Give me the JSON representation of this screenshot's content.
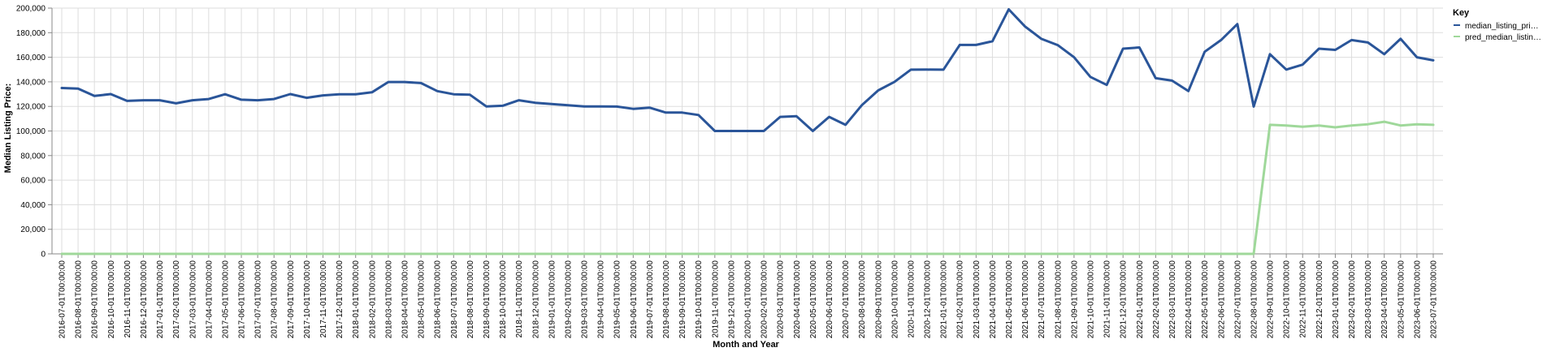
{
  "chart_data": {
    "type": "line",
    "xlabel": "Month and Year",
    "ylabel": "Median Listing Price:",
    "ylim": [
      0,
      200000
    ],
    "y_ticks": [
      "0",
      "20,000",
      "40,000",
      "60,000",
      "80,000",
      "100,000",
      "120,000",
      "140,000",
      "160,000",
      "180,000",
      "200,000"
    ],
    "grid": true,
    "legend": {
      "title": "Key",
      "position": "top-right",
      "entries": [
        "median_listing_pri…",
        "pred_median_listin…"
      ]
    },
    "colors": {
      "median": "#2a5599",
      "pred": "#9fd89a",
      "grid": "#dddddd",
      "axis": "#888888"
    },
    "x": [
      "2016-07-01T00:00:00",
      "2016-08-01T00:00:00",
      "2016-09-01T00:00:00",
      "2016-10-01T00:00:00",
      "2016-11-01T00:00:00",
      "2016-12-01T00:00:00",
      "2017-01-01T00:00:00",
      "2017-02-01T00:00:00",
      "2017-03-01T00:00:00",
      "2017-04-01T00:00:00",
      "2017-05-01T00:00:00",
      "2017-06-01T00:00:00",
      "2017-07-01T00:00:00",
      "2017-08-01T00:00:00",
      "2017-09-01T00:00:00",
      "2017-10-01T00:00:00",
      "2017-11-01T00:00:00",
      "2017-12-01T00:00:00",
      "2018-01-01T00:00:00",
      "2018-02-01T00:00:00",
      "2018-03-01T00:00:00",
      "2018-04-01T00:00:00",
      "2018-05-01T00:00:00",
      "2018-06-01T00:00:00",
      "2018-07-01T00:00:00",
      "2018-08-01T00:00:00",
      "2018-09-01T00:00:00",
      "2018-10-01T00:00:00",
      "2018-11-01T00:00:00",
      "2018-12-01T00:00:00",
      "2019-01-01T00:00:00",
      "2019-02-01T00:00:00",
      "2019-03-01T00:00:00",
      "2019-04-01T00:00:00",
      "2019-05-01T00:00:00",
      "2019-06-01T00:00:00",
      "2019-07-01T00:00:00",
      "2019-08-01T00:00:00",
      "2019-09-01T00:00:00",
      "2019-10-01T00:00:00",
      "2019-11-01T00:00:00",
      "2019-12-01T00:00:00",
      "2020-01-01T00:00:00",
      "2020-02-01T00:00:00",
      "2020-03-01T00:00:00",
      "2020-04-01T00:00:00",
      "2020-05-01T00:00:00",
      "2020-06-01T00:00:00",
      "2020-07-01T00:00:00",
      "2020-08-01T00:00:00",
      "2020-09-01T00:00:00",
      "2020-10-01T00:00:00",
      "2020-11-01T00:00:00",
      "2020-12-01T00:00:00",
      "2021-01-01T00:00:00",
      "2021-02-01T00:00:00",
      "2021-03-01T00:00:00",
      "2021-04-01T00:00:00",
      "2021-05-01T00:00:00",
      "2021-06-01T00:00:00",
      "2021-07-01T00:00:00",
      "2021-08-01T00:00:00",
      "2021-09-01T00:00:00",
      "2021-10-01T00:00:00",
      "2021-11-01T00:00:00",
      "2021-12-01T00:00:00",
      "2022-01-01T00:00:00",
      "2022-02-01T00:00:00",
      "2022-03-01T00:00:00",
      "2022-04-01T00:00:00",
      "2022-05-01T00:00:00",
      "2022-06-01T00:00:00",
      "2022-07-01T00:00:00",
      "2022-08-01T00:00:00",
      "2022-09-01T00:00:00",
      "2022-10-01T00:00:00",
      "2022-11-01T00:00:00",
      "2022-12-01T00:00:00",
      "2023-01-01T00:00:00",
      "2023-02-01T00:00:00",
      "2023-03-01T00:00:00",
      "2023-04-01T00:00:00",
      "2023-05-01T00:00:00",
      "2023-06-01T00:00:00",
      "2023-07-01T00:00:00"
    ],
    "series": [
      {
        "name": "median_listing_pri…",
        "values": [
          135000,
          134500,
          128500,
          130000,
          124500,
          125000,
          125000,
          122500,
          125000,
          126000,
          129900,
          125500,
          125000,
          126000,
          130000,
          127000,
          129000,
          129900,
          129900,
          131500,
          139900,
          139900,
          139000,
          132500,
          129900,
          129500,
          120000,
          120500,
          125000,
          123000,
          122000,
          120900,
          120000,
          120000,
          119900,
          118000,
          119000,
          115000,
          115000,
          113000,
          100000,
          100000,
          100000,
          100000,
          111500,
          112000,
          100000,
          111500,
          105000,
          121000,
          133000,
          140000,
          149900,
          150000,
          149900,
          170000,
          170000,
          173000,
          199000,
          185000,
          175000,
          169900,
          160000,
          144000,
          137500,
          167000,
          168000,
          143000,
          141000,
          132500,
          164500,
          174000,
          187000,
          119900,
          162500,
          150000,
          154000,
          167000,
          166000,
          174000,
          172000,
          162500,
          175000,
          160000,
          157500
        ]
      },
      {
        "name": "pred_median_listin…",
        "values": [
          0,
          0,
          0,
          0,
          0,
          0,
          0,
          0,
          0,
          0,
          0,
          0,
          0,
          0,
          0,
          0,
          0,
          0,
          0,
          0,
          0,
          0,
          0,
          0,
          0,
          0,
          0,
          0,
          0,
          0,
          0,
          0,
          0,
          0,
          0,
          0,
          0,
          0,
          0,
          0,
          0,
          0,
          0,
          0,
          0,
          0,
          0,
          0,
          0,
          0,
          0,
          0,
          0,
          0,
          0,
          0,
          0,
          0,
          0,
          0,
          0,
          0,
          0,
          0,
          0,
          0,
          0,
          0,
          0,
          0,
          0,
          0,
          0,
          0,
          105000,
          104500,
          103500,
          104500,
          103000,
          104500,
          105500,
          107500,
          104500,
          105500,
          105000
        ]
      }
    ]
  }
}
